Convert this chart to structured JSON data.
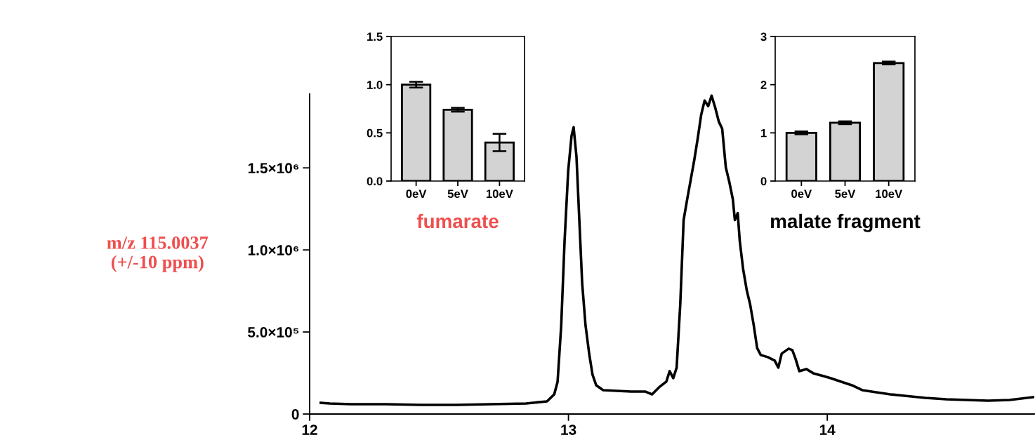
{
  "chart_data": [
    {
      "type": "line",
      "ylabel": "m/z 115.0037\n(+/-10 ppm)",
      "xlim": [
        12,
        14.8
      ],
      "xticks": [
        12,
        13,
        14
      ],
      "ylim": [
        0,
        1950000
      ],
      "yticks": [
        0,
        {
          "value": 500000,
          "label": "5.0×10⁵"
        },
        {
          "value": 1000000,
          "label": "1.0×10⁶"
        },
        {
          "value": 1500000,
          "label": "1.5×10⁶"
        }
      ],
      "grid": false,
      "legend": false,
      "marker": "none",
      "line_style": "solid",
      "series": [
        {
          "color": "#000000",
          "x": [
            12.043,
            12.078,
            12.16,
            12.295,
            12.43,
            12.566,
            12.701,
            12.836,
            12.917,
            12.945,
            12.958,
            12.972,
            12.985,
            12.999,
            13.012,
            13.02,
            13.031,
            13.042,
            13.053,
            13.066,
            13.08,
            13.093,
            13.107,
            13.134,
            13.188,
            13.242,
            13.296,
            13.323,
            13.35,
            13.378,
            13.391,
            13.405,
            13.418,
            13.432,
            13.445,
            13.459,
            13.486,
            13.499,
            13.513,
            13.526,
            13.54,
            13.553,
            13.567,
            13.581,
            13.594,
            13.608,
            13.621,
            13.635,
            13.643,
            13.654,
            13.662,
            13.675,
            13.689,
            13.702,
            13.716,
            13.729,
            13.743,
            13.77,
            13.797,
            13.811,
            13.824,
            13.851,
            13.865,
            13.878,
            13.892,
            13.919,
            13.946,
            13.986,
            14.014,
            14.054,
            14.095,
            14.135,
            14.189,
            14.244,
            14.298,
            14.379,
            14.46,
            14.541,
            14.622,
            14.704,
            14.796
          ],
          "values": [
            68500,
            64200,
            60000,
            60000,
            55700,
            55700,
            60000,
            64200,
            77100,
            119900,
            197000,
            539700,
            1053600,
            1481900,
            1696000,
            1747500,
            1567600,
            1182100,
            796600,
            539700,
            368300,
            239800,
            175600,
            145600,
            141300,
            137100,
            137100,
            119900,
            162800,
            197000,
            261300,
            218400,
            282700,
            668100,
            1182100,
            1310600,
            1546200,
            1674700,
            1824600,
            1910200,
            1876000,
            1940000,
            1867400,
            1781700,
            1738900,
            1503300,
            1417700,
            1310600,
            1182100,
            1224900,
            1053600,
            882300,
            753800,
            668100,
            539700,
            402600,
            359800,
            346900,
            325500,
            282700,
            368300,
            398300,
            389800,
            334100,
            261300,
            274100,
            248400,
            231300,
            218400,
            197000,
            175600,
            145600,
            132800,
            119900,
            111400,
            98500,
            89900,
            85700,
            81400,
            85700,
            102800
          ]
        }
      ]
    },
    {
      "type": "bar",
      "xlabel": "fumarate",
      "categories": [
        "0eV",
        "5eV",
        "10eV"
      ],
      "values": [
        1.0,
        0.74,
        0.4
      ],
      "errors": [
        0.03,
        0.02,
        0.09
      ],
      "color": "#d3d3d3",
      "ylim": [
        0,
        1.5
      ],
      "yticks": [
        {
          "value": 0,
          "label": "0.0"
        },
        {
          "value": 0.5,
          "label": "0.5"
        },
        {
          "value": 1.0,
          "label": "1.0"
        },
        {
          "value": 1.5,
          "label": "1.5"
        }
      ],
      "grid": false
    },
    {
      "type": "bar",
      "xlabel": "malate fragment",
      "categories": [
        "0eV",
        "5eV",
        "10eV"
      ],
      "values": [
        1.0,
        1.21,
        2.45
      ],
      "errors": [
        0.03,
        0.03,
        0.03
      ],
      "color": "#d3d3d3",
      "ylim": [
        0,
        3
      ],
      "yticks": [
        0,
        1,
        2,
        3
      ],
      "grid": false
    }
  ]
}
